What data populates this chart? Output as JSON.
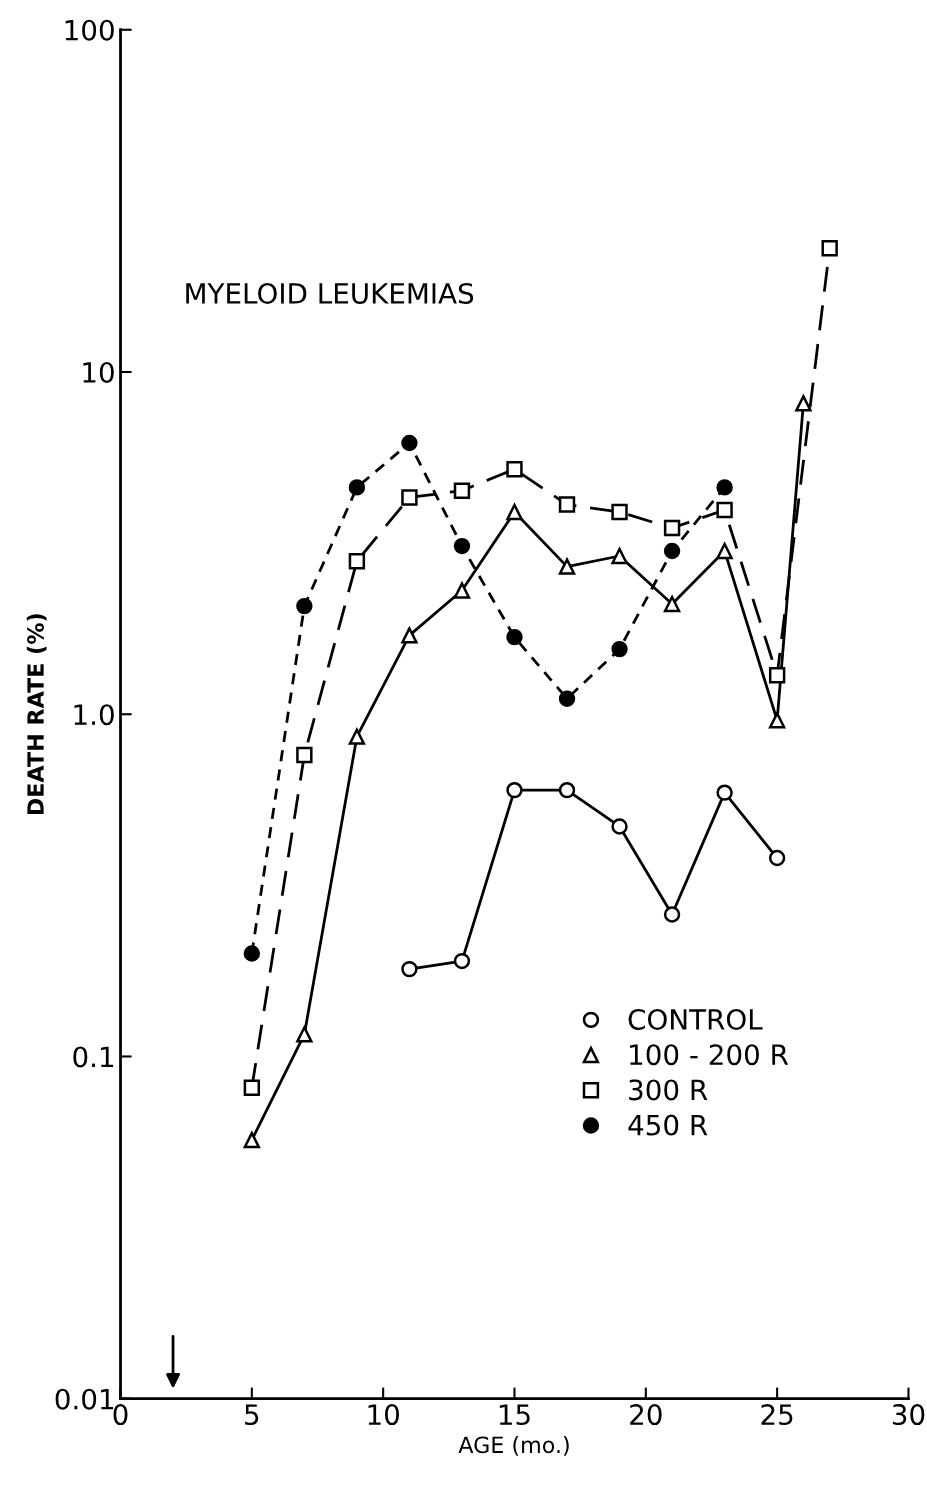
{
  "chart_data": {
    "type": "line",
    "title": "MYELOID LEUKEMIAS",
    "xlabel": "AGE (mo.)",
    "ylabel": "DEATH RATE (%)",
    "log": "y",
    "xlim": [
      0,
      30
    ],
    "xticks": [
      0,
      5,
      10,
      15,
      20,
      25,
      30
    ],
    "ylim": [
      0.01,
      100
    ],
    "yticks": [
      {
        "value": 0.01,
        "label": "0.01"
      },
      {
        "value": 0.1,
        "label": "0.1"
      },
      {
        "value": 1,
        "label": "1.0"
      },
      {
        "value": 10,
        "label": "10"
      },
      {
        "value": 100,
        "label": "100"
      }
    ],
    "grid": false,
    "legend": "lower right",
    "series": [
      {
        "name": "CONTROL",
        "color": "#000000",
        "marker": "circle",
        "line_style": "solid",
        "x": [
          11,
          13,
          15,
          17,
          19,
          21,
          23,
          25
        ],
        "values": [
          0.18,
          0.19,
          0.6,
          0.6,
          0.47,
          0.26,
          0.59,
          0.38
        ]
      },
      {
        "name": "100 - 200 R",
        "color": "#000000",
        "marker": "triangle",
        "line_style": "solid",
        "x": [
          5,
          7,
          9,
          11,
          13,
          15,
          17,
          19,
          21,
          23,
          25,
          26
        ],
        "values": [
          0.057,
          0.116,
          0.86,
          1.7,
          2.3,
          3.9,
          2.7,
          2.9,
          2.1,
          3.0,
          0.96,
          8.1
        ]
      },
      {
        "name": "300 R",
        "color": "#000000",
        "marker": "square",
        "line_style": "dashed",
        "x": [
          5,
          7,
          9,
          11,
          13,
          15,
          17,
          19,
          21,
          23,
          25,
          27
        ],
        "values": [
          0.081,
          0.76,
          2.8,
          4.3,
          4.5,
          5.2,
          4.1,
          3.9,
          3.5,
          3.95,
          1.3,
          23
        ]
      },
      {
        "name": "450 R",
        "color": "#000000",
        "marker": "circle",
        "line_style": "dotted",
        "x": [
          5,
          7,
          9,
          11,
          13,
          15,
          17,
          19,
          21,
          23
        ],
        "values": [
          0.2,
          2.07,
          4.6,
          6.2,
          3.1,
          1.68,
          1.11,
          1.55,
          3.0,
          4.6
        ]
      }
    ]
  }
}
